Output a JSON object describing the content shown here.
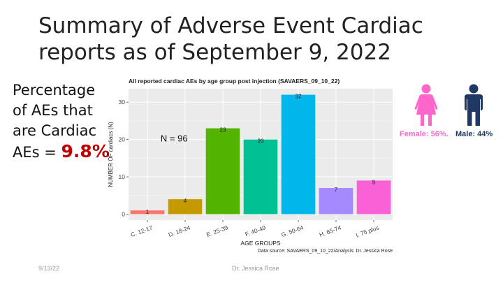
{
  "slide": {
    "title": "Summary of Adverse Event Cardiac reports as of September 9, 2022",
    "percentage": {
      "label_lines": [
        "Percentage",
        "of AEs that",
        "are Cardiac",
        "AEs = "
      ],
      "value": "9.8%"
    },
    "gender": {
      "female": "Female: 56%.",
      "male": "Male: 44%",
      "female_color": "#ff66cc",
      "male_color": "#1f3864",
      "female_icon": "female-person-icon",
      "male_icon": "male-person-icon"
    },
    "footer": {
      "date": "9/13/22",
      "author": "Dr. Jessica Rose"
    }
  },
  "chart_data": {
    "type": "bar",
    "title": "All reported cardiac AEs by age group post injection (SAVAERS_09_10_22)",
    "xlabel": "AGE GROUPS",
    "ylabel": "NUMBER OF cardiacs (N)",
    "categories": [
      "C. 12-17",
      "D. 18-24",
      "E. 25-39",
      "F. 40-49",
      "G. 50-64",
      "H. 65-74",
      "I. 75 plus"
    ],
    "values": [
      1,
      4,
      23,
      20,
      32,
      7,
      9
    ],
    "colors": [
      "#f8766d",
      "#c49a00",
      "#53b400",
      "#00c094",
      "#00b6eb",
      "#a58aff",
      "#fb61d7"
    ],
    "ylim": [
      -1.6,
      33.6
    ],
    "yticks": [
      0,
      10,
      20,
      30
    ],
    "annotation": "N = 96",
    "source": "Data source: SAVAERS_09_10_22/Analysis: Dr. Jessica Rose",
    "background": "#ebebeb",
    "grid": true
  }
}
